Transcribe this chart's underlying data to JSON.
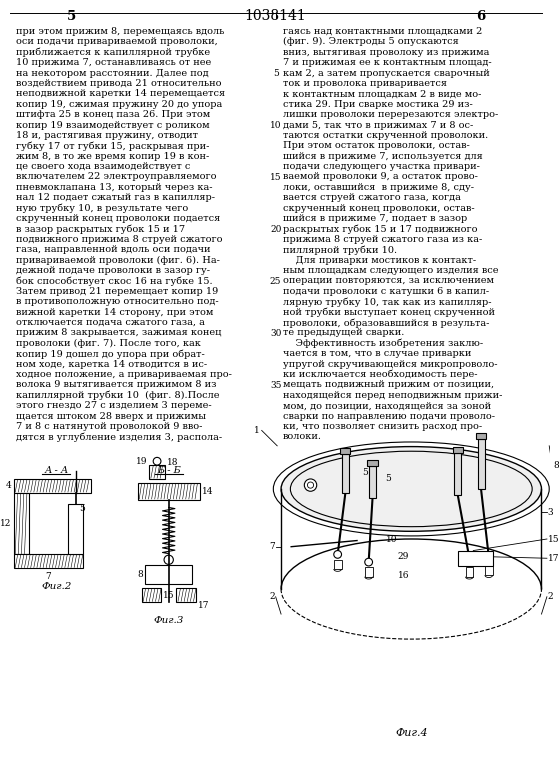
{
  "page_number_left": "5",
  "page_number_center": "1038141",
  "page_number_right": "6",
  "col1_lines": [
    "при этом прижим 8, перемещаясь вдоль",
    "оси подачи привариваемой проволоки,",
    "приближается к капиллярной трубке",
    "10 прижима 7, останавливаясь от нее",
    "на некотором расстоянии. Далее под",
    "воздействием привода 21 относительно",
    "неподвижной каретки 14 перемещается",
    "копир 19, сжимая пружину 20 до упора",
    "штифта 25 в конец паза 26. При этом",
    "копир 19 взаимодействует с роликом",
    "18 и, растягивая пружину, отводит",
    "губку 17 от губки 15, раскрывая при-",
    "жим 8, в то же время копир 19 в кон-",
    "це своего хода взаимодействует с",
    "включателем 22 электроуправляемого",
    "пневмоклапана 13, который через ка-",
    "нал 12 подает сжатый газ в капилляр-",
    "ную трубку 10, в результате чего",
    "скрученный конец проволоки подается",
    "в зазор раскрытых губок 15 и 17",
    "подвижного прижима 8 струей сжатого",
    "газа, направленной вдоль оси подачи",
    "привариваемой проволоки (фиг. 6). На-",
    "дежной подаче проволоки в зазор гу-",
    "бок способствует скос 16 на губке 15.",
    "Затем привод 21 перемещает копир 19",
    "в противоположную относительно под-",
    "вижной каретки 14 сторону, при этом",
    "отключается подача сжатого газа, а",
    "прижим 8 закрывается, зажимая конец",
    "проволоки (фиг. 7). После того, как",
    "копир 19 дошел до упора при обрат-",
    "ном ходе, каретка 14 отводится в ис-",
    "ходное положение, а привариваемая про-",
    "волока 9 вытягивается прижимом 8 из",
    "капиллярной трубки 10  (фиг. 8).После",
    "этого гнездо 27 с изделием 3 переме-",
    "щается штоком 28 вверх и прижимы",
    "7 и 8 с натянутой проволокой 9 вво-",
    "дятся в углубление изделия 3, распола-"
  ],
  "col2_lines": [
    "гаясь над контактными площадками 2",
    "(фиг. 9). Электроды 5 опускаются",
    "вниз, вытягивая проволоку из прижима",
    "7 и прижимая ее к контактным площад-",
    "кам 2, а затем пропускается сварочный",
    "ток и проволока приваривается",
    "к контактным площадкам 2 в виде мо-",
    "стика 29. При сварке мостика 29 из-",
    "лишки проволоки перерезаются электро-",
    "дами 5, так что в прижимах 7 и 8 ос-",
    "таются остатки скрученной проволоки.",
    "При этом остаток проволоки, остав-",
    "шийся в прижиме 7, используется для",
    "подачи следующего участка привари-",
    "ваемой проволоки 9, а остаток прово-",
    "локи, оставшийся  в прижиме 8, сду-",
    "вается струей сжатого газа, когда",
    "скрученный конец проволоки, остав-",
    "шийся в прижиме 7, подает в зазор",
    "раскрытых губок 15 и 17 подвижного",
    "прижима 8 струей сжатого газа из ка-",
    "пиллярной трубки 10.",
    "    Для приварки мостиков к контакт-",
    "ным площадкам следующего изделия все",
    "операции повторяются, за исключением",
    "подачи проволоки с катушки 6 в капил-",
    "лярную трубку 10, так как из капилляр-",
    "ной трубки выступает конец скрученной",
    "проволоки, образовавшийся в результа-",
    "те предыдущей сварки.",
    "    Эффективность изобретения заклю-",
    "чается в том, что в случае приварки",
    "упругой скручивающейся микропроволо-",
    "ки исключается необходимость пере-",
    "мещать подвижный прижим от позиции,",
    "находящейся перед неподвижным прижи-",
    "мом, до позиции, находящейся за зоной",
    "сварки по направлению подачи проволо-",
    "ки, что позволяет снизить расход про-",
    "волоки."
  ],
  "line_numbers": [
    "5",
    "10",
    "15",
    "20",
    "25",
    "30",
    "35"
  ],
  "background_color": "#ffffff",
  "text_color": "#000000",
  "font_size": 7.0,
  "header_font_size": 9.5
}
